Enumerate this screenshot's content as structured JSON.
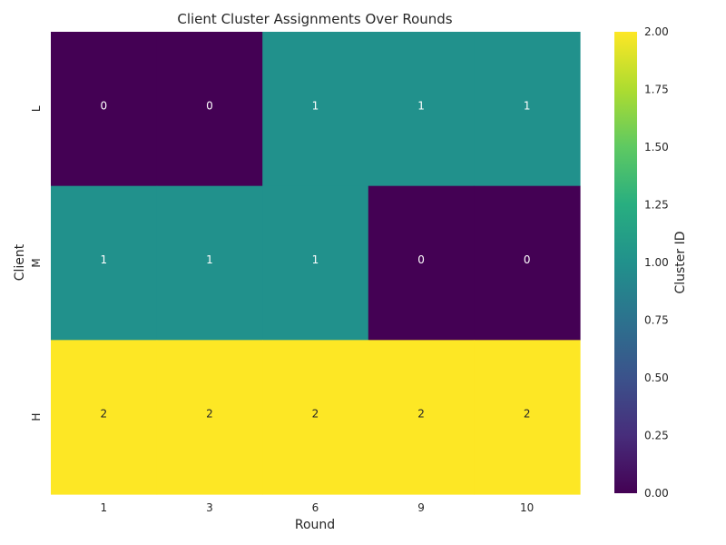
{
  "chart_data": {
    "type": "heatmap",
    "title": "Client Cluster Assignments Over Rounds",
    "xlabel": "Round",
    "ylabel": "Client",
    "x_categories": [
      "1",
      "3",
      "6",
      "9",
      "10"
    ],
    "y_categories": [
      "L",
      "M",
      "H"
    ],
    "values": [
      [
        0,
        0,
        1,
        1,
        1
      ],
      [
        1,
        1,
        1,
        0,
        0
      ],
      [
        2,
        2,
        2,
        2,
        2
      ]
    ],
    "annotate": true,
    "colormap": "viridis",
    "vmin": 0,
    "vmax": 2,
    "colorbar": {
      "label": "Cluster ID",
      "ticks": [
        "0.00",
        "0.25",
        "0.50",
        "0.75",
        "1.00",
        "1.25",
        "1.50",
        "1.75",
        "2.00"
      ]
    },
    "colors": {
      "0": "#440154",
      "1": "#21918c",
      "2": "#fde725",
      "label_dark": "#262626",
      "label_light": "#ffffff"
    }
  }
}
